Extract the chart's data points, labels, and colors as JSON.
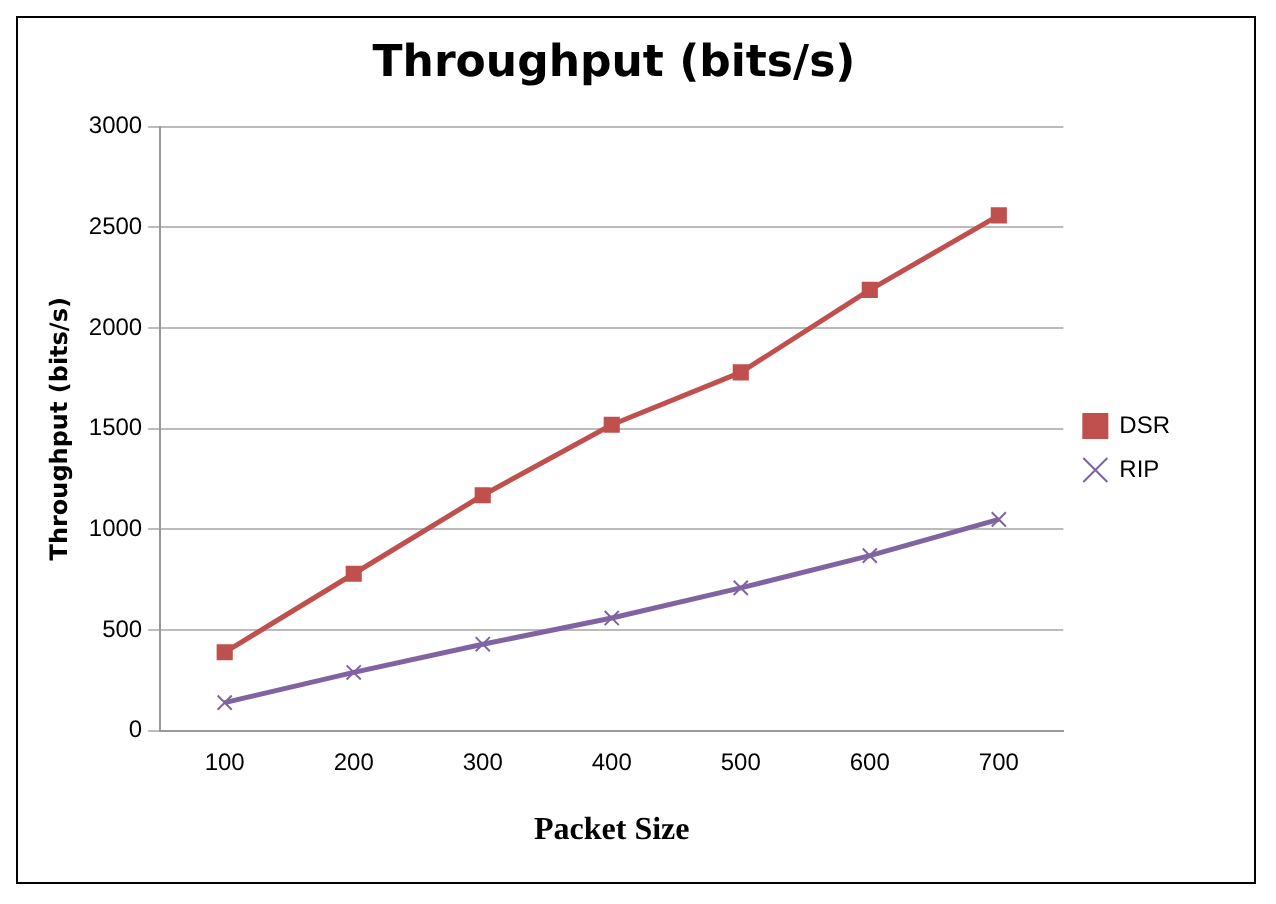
{
  "chart_data": {
    "type": "line",
    "title": "Throughput (bits/s)",
    "xlabel": "Packet Size",
    "ylabel": "Throughput (bits/s)",
    "categories": [
      "100",
      "200",
      "300",
      "400",
      "500",
      "600",
      "700"
    ],
    "series": [
      {
        "name": "DSR",
        "color": "#c0504d",
        "marker": "square",
        "values": [
          390,
          780,
          1170,
          1520,
          1780,
          2190,
          2560
        ]
      },
      {
        "name": "RIP",
        "color": "#8064a2",
        "marker": "cross",
        "values": [
          140,
          290,
          430,
          560,
          710,
          870,
          1050
        ]
      }
    ],
    "ylim": [
      0,
      3000
    ],
    "yticks": [
      0,
      500,
      1000,
      1500,
      2000,
      2500,
      3000
    ],
    "grid": "y",
    "legend": "right",
    "line_style": "solid"
  }
}
